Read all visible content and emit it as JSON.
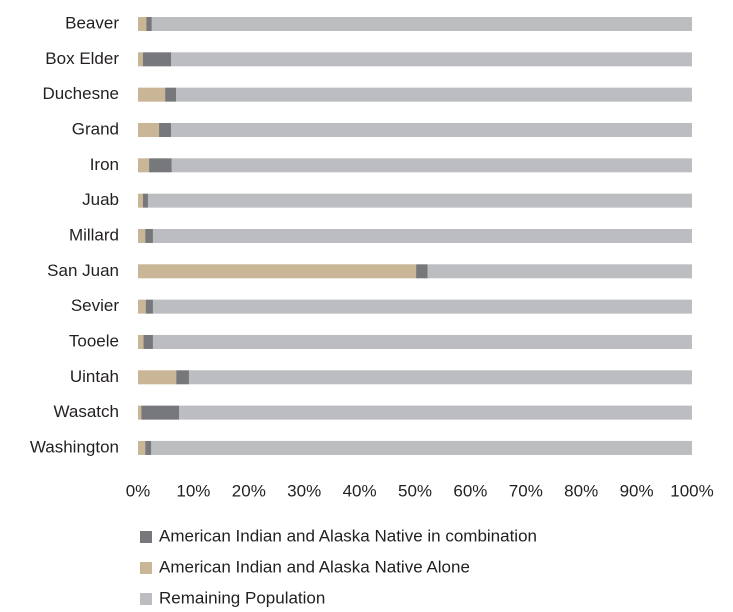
{
  "chart_data": {
    "type": "stacked_barh",
    "categories": [
      "Beaver",
      "Box Elder",
      "Duchesne",
      "Grand",
      "Iron",
      "Juab",
      "Millard",
      "San Juan",
      "Sevier",
      "Tooele",
      "Uintah",
      "Wasatch",
      "Washington"
    ],
    "series": [
      {
        "name": "American Indian and Alaska Native in combination",
        "color": "#77787b",
        "values": [
          1.0,
          5.1,
          2.0,
          2.2,
          4.1,
          0.9,
          1.4,
          2.1,
          1.3,
          1.7,
          2.3,
          6.8,
          1.1
        ]
      },
      {
        "name": "American Indian and Alaska Native Alone",
        "color": "#c8b696",
        "values": [
          1.5,
          0.9,
          4.9,
          3.8,
          2.0,
          0.9,
          1.3,
          50.2,
          1.4,
          1.0,
          6.9,
          0.6,
          1.3
        ]
      },
      {
        "name": "Remaining Population",
        "color": "#bcbdc0",
        "values": [
          97.5,
          94.0,
          93.1,
          94.0,
          93.9,
          98.2,
          97.3,
          47.7,
          97.3,
          97.3,
          90.8,
          92.6,
          97.6
        ]
      }
    ],
    "xlim": [
      0,
      100
    ],
    "xticks": [
      {
        "value": 0,
        "label": "0%"
      },
      {
        "value": 10,
        "label": "10%"
      },
      {
        "value": 20,
        "label": "20%"
      },
      {
        "value": 30,
        "label": "30%"
      },
      {
        "value": 40,
        "label": "40%"
      },
      {
        "value": 50,
        "label": "50%"
      },
      {
        "value": 60,
        "label": "60%"
      },
      {
        "value": 70,
        "label": "70%"
      },
      {
        "value": 80,
        "label": "80%"
      },
      {
        "value": 90,
        "label": "90%"
      },
      {
        "value": 100,
        "label": "100%"
      }
    ],
    "legend": "bottom"
  }
}
